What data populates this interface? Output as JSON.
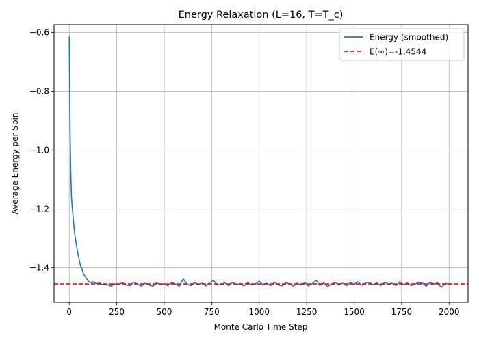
{
  "chart_data": {
    "type": "line",
    "title": "Energy Relaxation (L=16, T=T_c)",
    "xlabel": "Monte Carlo Time Step",
    "ylabel": "Average Energy per Spin",
    "xlim": [
      -80,
      2100
    ],
    "ylim": [
      -1.517,
      -0.573
    ],
    "xticks": [
      0,
      250,
      500,
      750,
      1000,
      1250,
      1500,
      1750,
      2000
    ],
    "yticks": [
      -1.4,
      -1.2,
      -1.0,
      -0.8,
      -0.6
    ],
    "ytick_labels": [
      "−1.4",
      "−1.2",
      "−1.0",
      "−0.8",
      "−0.6"
    ],
    "grid": true,
    "legend_position": "top-right",
    "series": [
      {
        "name": "Energy (smoothed)",
        "color": "#1f77b4",
        "style": "solid",
        "x": [
          0,
          2,
          5,
          8,
          10,
          12,
          15,
          20,
          25,
          30,
          35,
          40,
          45,
          50,
          55,
          60,
          65,
          70,
          75,
          80,
          85,
          90,
          95,
          100,
          105,
          110,
          115,
          120,
          125,
          130,
          140,
          150,
          160,
          170,
          180,
          200,
          220,
          240,
          260,
          280,
          300,
          320,
          340,
          360,
          380,
          400,
          420,
          440,
          460,
          480,
          500,
          520,
          540,
          560,
          580,
          600,
          620,
          640,
          660,
          680,
          700,
          720,
          740,
          760,
          780,
          800,
          820,
          840,
          860,
          880,
          900,
          920,
          940,
          960,
          980,
          1000,
          1020,
          1040,
          1060,
          1080,
          1100,
          1120,
          1140,
          1160,
          1180,
          1200,
          1220,
          1240,
          1260,
          1280,
          1300,
          1320,
          1340,
          1360,
          1380,
          1400,
          1420,
          1440,
          1460,
          1480,
          1500,
          1520,
          1540,
          1560,
          1580,
          1600,
          1620,
          1640,
          1660,
          1680,
          1700,
          1720,
          1740,
          1760,
          1780,
          1800,
          1820,
          1840,
          1860,
          1880,
          1900,
          1920,
          1940,
          1960,
          1980,
          2000
        ],
        "y": [
          -0.613,
          -0.78,
          -0.96,
          -1.07,
          -1.12,
          -1.16,
          -1.19,
          -1.225,
          -1.26,
          -1.29,
          -1.31,
          -1.33,
          -1.35,
          -1.365,
          -1.38,
          -1.395,
          -1.4,
          -1.41,
          -1.42,
          -1.425,
          -1.43,
          -1.435,
          -1.44,
          -1.445,
          -1.448,
          -1.45,
          -1.449,
          -1.451,
          -1.447,
          -1.45,
          -1.452,
          -1.453,
          -1.451,
          -1.455,
          -1.457,
          -1.456,
          -1.462,
          -1.454,
          -1.457,
          -1.45,
          -1.458,
          -1.46,
          -1.448,
          -1.455,
          -1.462,
          -1.452,
          -1.458,
          -1.462,
          -1.451,
          -1.456,
          -1.454,
          -1.46,
          -1.449,
          -1.455,
          -1.462,
          -1.437,
          -1.455,
          -1.46,
          -1.45,
          -1.457,
          -1.452,
          -1.461,
          -1.449,
          -1.443,
          -1.458,
          -1.456,
          -1.45,
          -1.46,
          -1.449,
          -1.457,
          -1.453,
          -1.461,
          -1.45,
          -1.458,
          -1.455,
          -1.445,
          -1.458,
          -1.452,
          -1.46,
          -1.449,
          -1.457,
          -1.461,
          -1.45,
          -1.455,
          -1.462,
          -1.452,
          -1.458,
          -1.45,
          -1.461,
          -1.453,
          -1.442,
          -1.459,
          -1.451,
          -1.463,
          -1.455,
          -1.449,
          -1.458,
          -1.452,
          -1.46,
          -1.45,
          -1.456,
          -1.447,
          -1.459,
          -1.452,
          -1.449,
          -1.457,
          -1.451,
          -1.46,
          -1.449,
          -1.455,
          -1.452,
          -1.46,
          -1.447,
          -1.457,
          -1.451,
          -1.46,
          -1.455,
          -1.449,
          -1.452,
          -1.462,
          -1.448,
          -1.455,
          -1.451,
          -1.466,
          -1.453,
          -1.455
        ]
      },
      {
        "name": "E(∞)=-1.4544",
        "color": "#ff0000",
        "style": "dashed",
        "constant_y": -1.4544
      }
    ]
  }
}
